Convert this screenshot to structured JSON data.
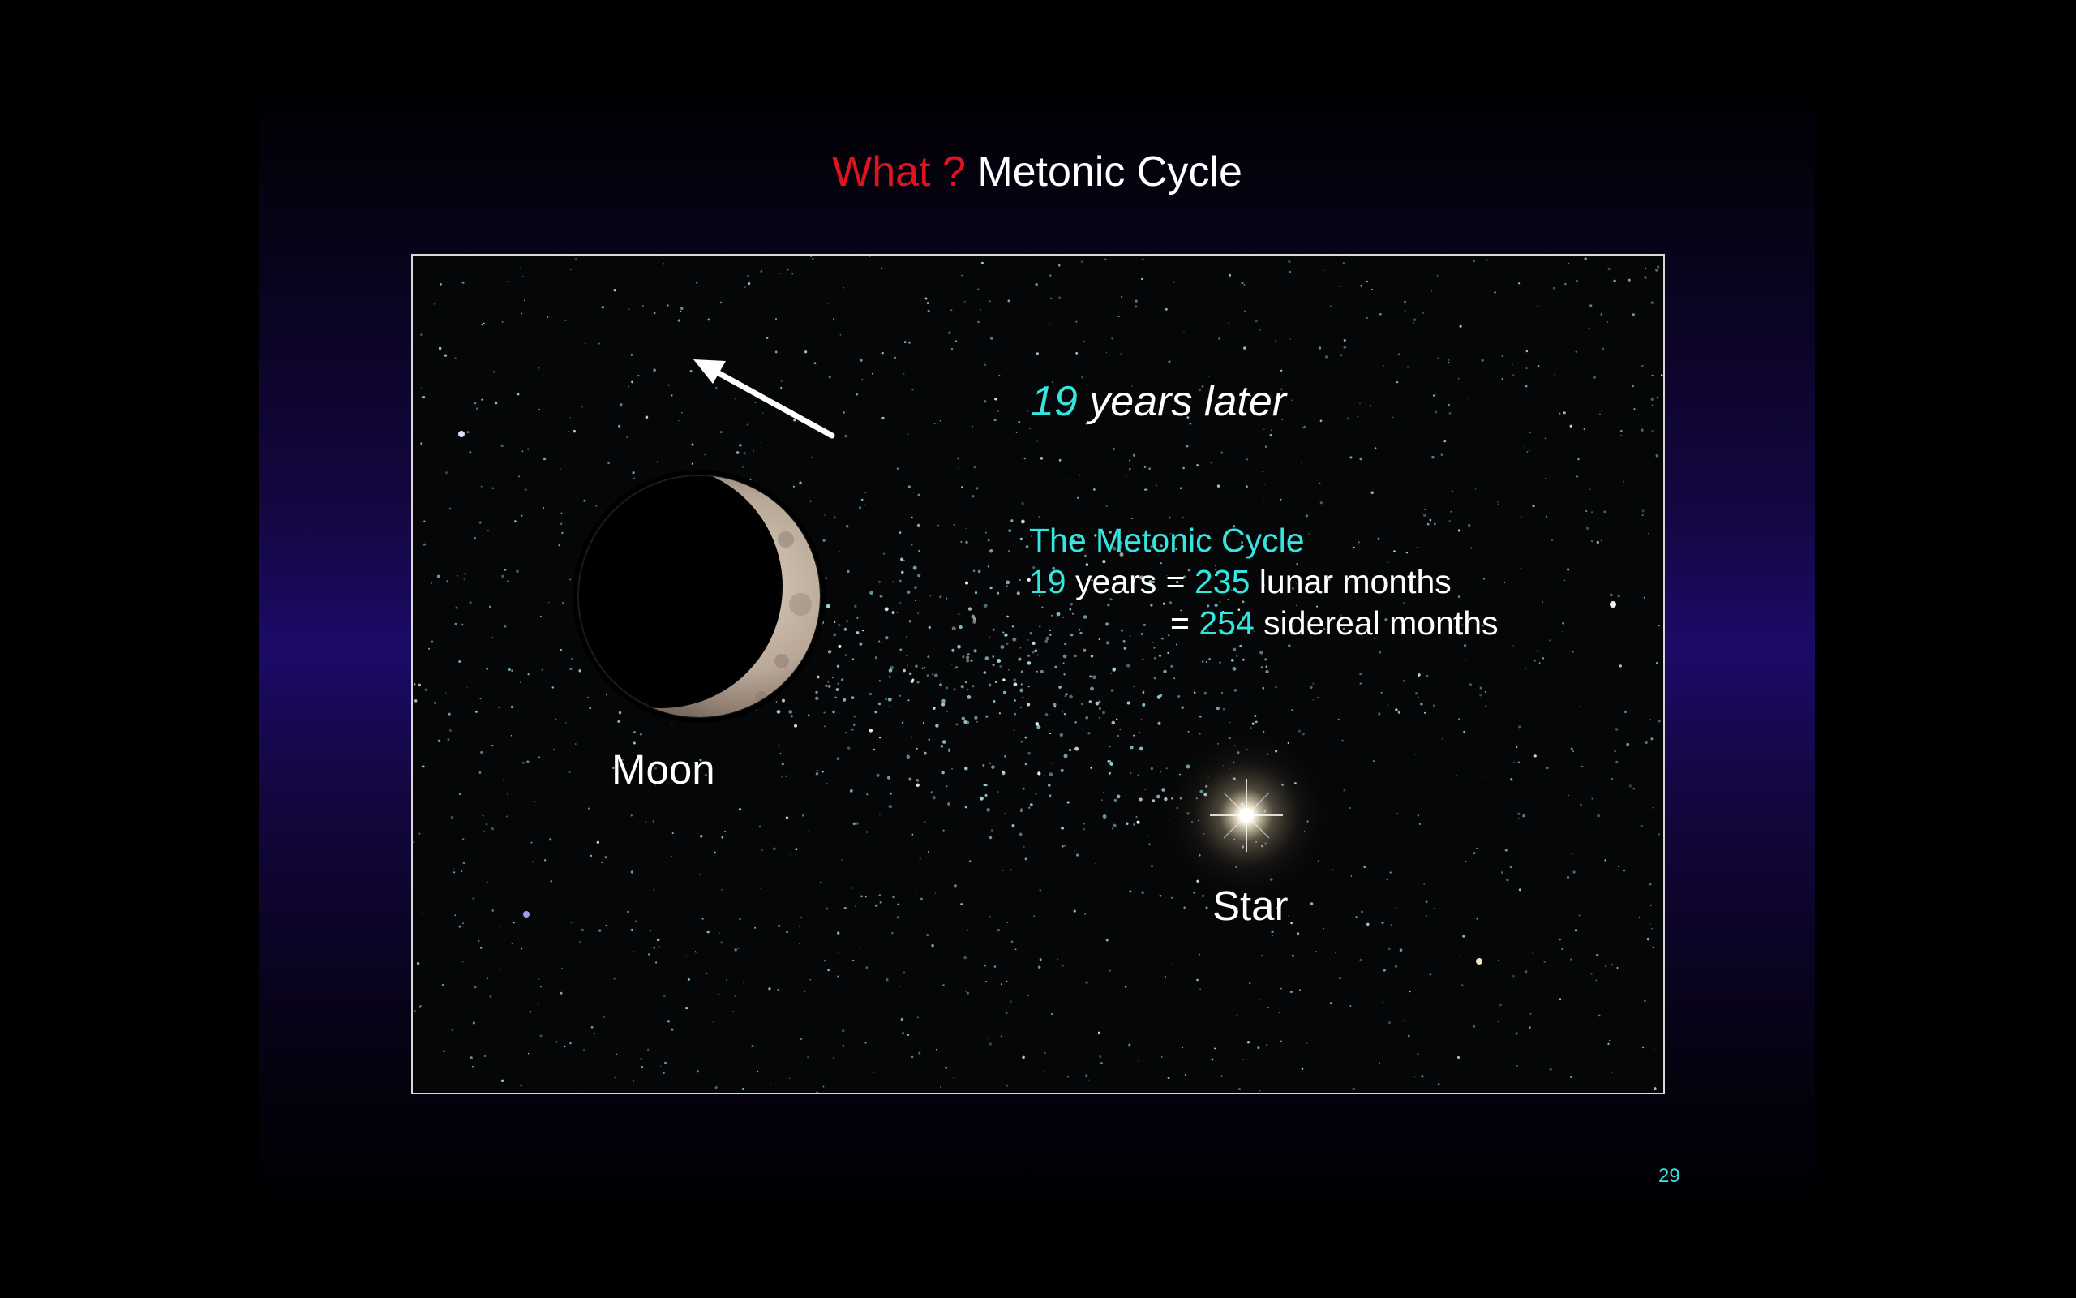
{
  "slide": {
    "title_question": "What ?",
    "title_main": "Metonic Cycle",
    "page_number": "29"
  },
  "photo": {
    "later": {
      "number": "19",
      "text": " years later"
    },
    "cycle": {
      "heading": "The Metonic Cycle",
      "line1": {
        "years_num": "19",
        "years_text": " years = ",
        "lunar_num": "235",
        "lunar_text": " lunar months"
      },
      "line2": {
        "eq": "= ",
        "sidereal_num": "254",
        "sidereal_text": " sidereal months"
      }
    },
    "moon_label": "Moon",
    "star_label": "Star"
  },
  "icons": {
    "arrow": "arrow-up-left-icon",
    "moon": "crescent-moon-icon",
    "star": "bright-star-icon"
  },
  "colors": {
    "accent_cyan": "#35e6e0",
    "title_red": "#e0141e",
    "slide_bg_center": "#1c0a68",
    "photo_bg": "#050607"
  }
}
